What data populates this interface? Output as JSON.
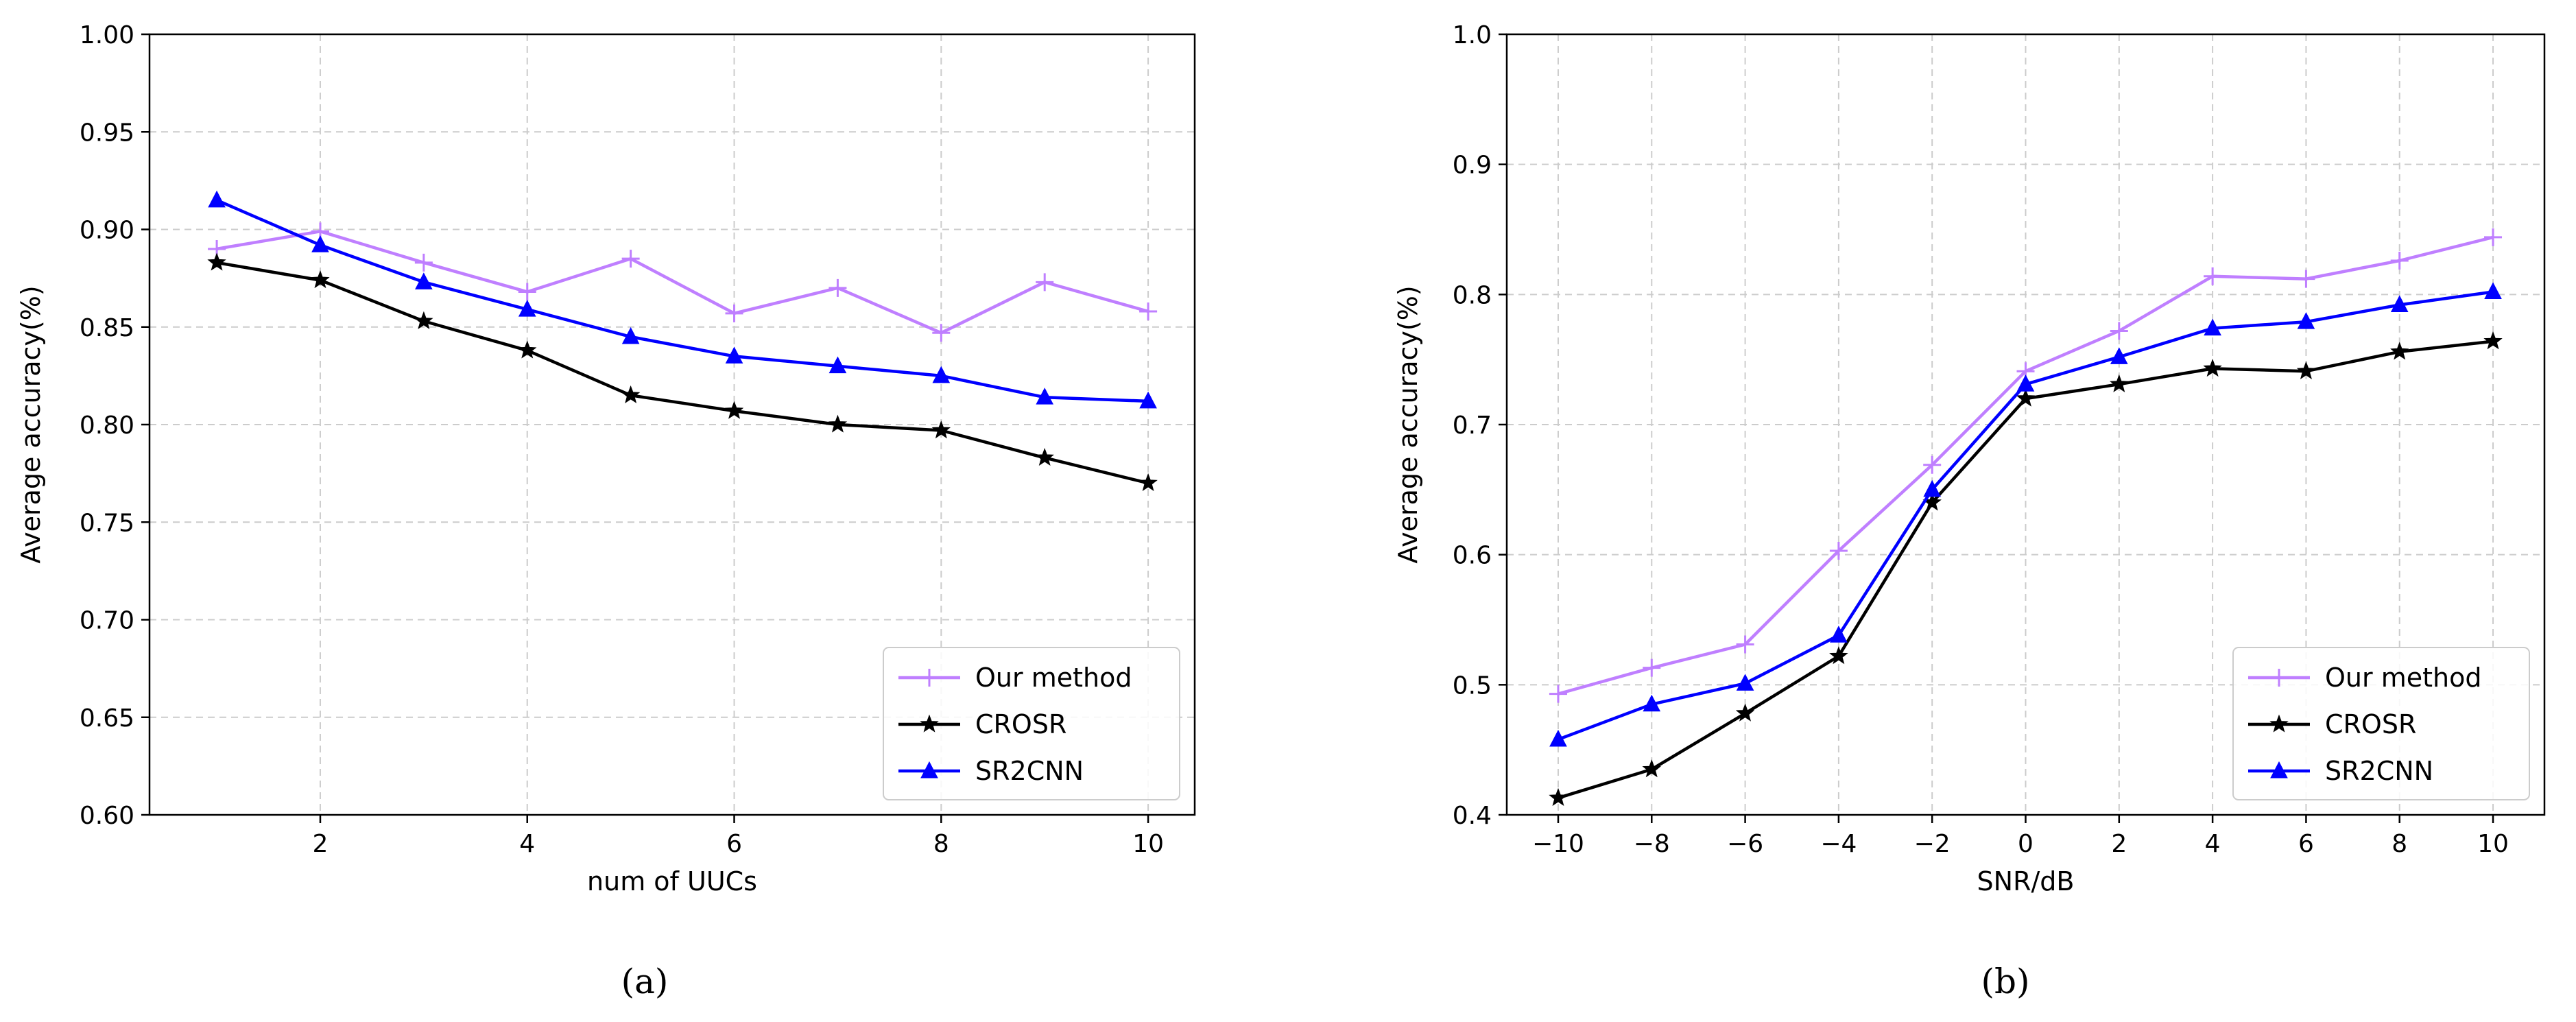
{
  "chart_data": [
    {
      "type": "line",
      "caption": "(a)",
      "xlabel": "num of UUCs",
      "ylabel": "Average accuracy(%)",
      "xlim": [
        0.35,
        10.45
      ],
      "ylim": [
        0.6,
        1.0
      ],
      "xticks": [
        2,
        4,
        6,
        8,
        10
      ],
      "yticks": [
        0.6,
        0.65,
        0.7,
        0.75,
        0.8,
        0.85,
        0.9,
        0.95,
        1.0
      ],
      "ytick_labels": [
        "0.60",
        "0.65",
        "0.70",
        "0.75",
        "0.80",
        "0.85",
        "0.90",
        "0.95",
        "1.00"
      ],
      "xtick_labels": [
        "2",
        "4",
        "6",
        "8",
        "10"
      ],
      "grid": true,
      "legend_position": "lower-right",
      "x": [
        1,
        2,
        3,
        4,
        5,
        6,
        7,
        8,
        9,
        10
      ],
      "series": [
        {
          "name": "Our method",
          "color": "#bf7fff",
          "marker": "plus",
          "values": [
            0.89,
            0.899,
            0.883,
            0.868,
            0.885,
            0.857,
            0.87,
            0.847,
            0.873,
            0.858
          ]
        },
        {
          "name": "CROSR",
          "color": "#000000",
          "marker": "star",
          "values": [
            0.883,
            0.874,
            0.853,
            0.838,
            0.815,
            0.807,
            0.8,
            0.797,
            0.783,
            0.77
          ]
        },
        {
          "name": "SR2CNN",
          "color": "#0000ff",
          "marker": "triangle",
          "values": [
            0.915,
            0.892,
            0.873,
            0.859,
            0.845,
            0.835,
            0.83,
            0.825,
            0.814,
            0.812
          ]
        }
      ]
    },
    {
      "type": "line",
      "caption": "(b)",
      "xlabel": "SNR/dB",
      "ylabel": "Average accuracy(%)",
      "xlim": [
        -11.1,
        11.1
      ],
      "ylim": [
        0.4,
        1.0
      ],
      "xticks": [
        -10,
        -8,
        -6,
        -4,
        -2,
        0,
        2,
        4,
        6,
        8,
        10
      ],
      "xtick_labels": [
        "−10",
        "−8",
        "−6",
        "−4",
        "−2",
        "0",
        "2",
        "4",
        "6",
        "8",
        "10"
      ],
      "yticks": [
        0.4,
        0.5,
        0.6,
        0.7,
        0.8,
        0.9,
        1.0
      ],
      "ytick_labels": [
        "0.4",
        "0.5",
        "0.6",
        "0.7",
        "0.8",
        "0.9",
        "1.0"
      ],
      "grid": true,
      "legend_position": "lower-right",
      "x": [
        -10,
        -8,
        -6,
        -4,
        -2,
        0,
        2,
        4,
        6,
        8,
        10
      ],
      "series": [
        {
          "name": "Our method",
          "color": "#bf7fff",
          "marker": "plus",
          "values": [
            0.493,
            0.513,
            0.531,
            0.603,
            0.669,
            0.741,
            0.772,
            0.814,
            0.812,
            0.826,
            0.844
          ]
        },
        {
          "name": "CROSR",
          "color": "#000000",
          "marker": "star",
          "values": [
            0.413,
            0.435,
            0.478,
            0.522,
            0.64,
            0.72,
            0.731,
            0.743,
            0.741,
            0.756,
            0.764
          ]
        },
        {
          "name": "SR2CNN",
          "color": "#0000ff",
          "marker": "triangle",
          "values": [
            0.458,
            0.485,
            0.501,
            0.538,
            0.65,
            0.731,
            0.752,
            0.774,
            0.779,
            0.792,
            0.802
          ]
        }
      ]
    }
  ]
}
